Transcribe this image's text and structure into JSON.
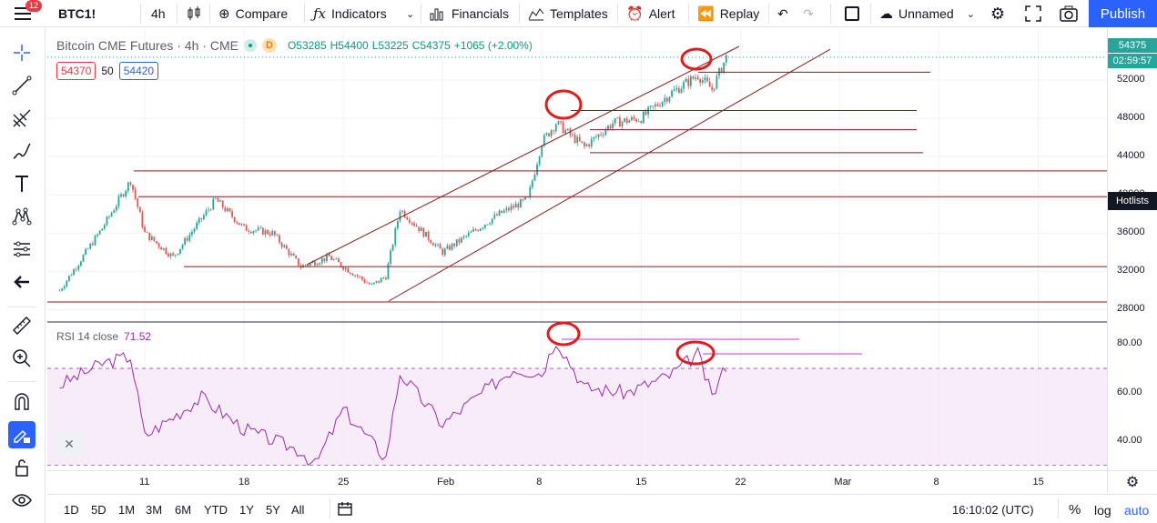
{
  "topbar": {
    "notification_count": "12",
    "symbol": "BTC1!",
    "interval": "4h",
    "compare_label": "Compare",
    "indicators_label": "Indicators",
    "financials_label": "Financials",
    "templates_label": "Templates",
    "alert_label": "Alert",
    "replay_label": "Replay",
    "layout_name": "Unnamed",
    "publish_label": "Publish"
  },
  "legend": {
    "title": "Bitcoin CME Futures · 4h · CME",
    "delay_badge": "D",
    "open": "O53285",
    "high": "H54400",
    "low": "L53225",
    "close": "C54375",
    "change": "+1065 (+2.00%)",
    "bid": "54370",
    "spread": "50",
    "ask": "54420"
  },
  "rsi": {
    "label": "RSI 14 close",
    "value": "71.52"
  },
  "price_axis": {
    "ticks": [
      "52000",
      "48000",
      "44000",
      "40000",
      "36000",
      "32000",
      "28000"
    ],
    "rsi_ticks": [
      "80.00",
      "60.00",
      "40.00"
    ],
    "last_price": "54375",
    "countdown": "02:59:57",
    "hotlists": "Hotlists"
  },
  "time_axis": {
    "ticks": [
      "11",
      "18",
      "25",
      "Feb",
      "8",
      "15",
      "22",
      "Mar",
      "8",
      "15"
    ]
  },
  "bottom": {
    "ranges": [
      "1D",
      "5D",
      "1M",
      "3M",
      "6M",
      "YTD",
      "1Y",
      "5Y",
      "All"
    ],
    "clock": "16:10:02 (UTC)",
    "percent": "%",
    "log": "log",
    "auto": "auto"
  },
  "colors": {
    "up": "#26a69a",
    "down": "#ef5350",
    "accent": "#2962ff",
    "rsi": "#9c27b0",
    "lines": "#8b1a1a",
    "circles": "#e31b1b"
  },
  "chart_data": {
    "type": "candlestick",
    "symbol": "BTC1!",
    "interval": "4h",
    "approx_close_path": [
      [
        "Jan 5",
        30000
      ],
      [
        "Jan 8",
        36500
      ],
      [
        "Jan 10",
        41500
      ],
      [
        "Jan 11",
        36000
      ],
      [
        "Jan 13",
        33500
      ],
      [
        "Jan 15",
        37500
      ],
      [
        "Jan 16",
        39500
      ],
      [
        "Jan 18",
        36500
      ],
      [
        "Jan 20",
        36000
      ],
      [
        "Jan 22",
        32500
      ],
      [
        "Jan 24",
        33500
      ],
      [
        "Jan 27",
        30500
      ],
      [
        "Jan 28",
        31500
      ],
      [
        "Jan 29",
        38500
      ],
      [
        "Feb 1",
        34000
      ],
      [
        "Feb 5",
        38000
      ],
      [
        "Feb 7",
        39500
      ],
      [
        "Feb 8",
        45500
      ],
      [
        "Feb 9",
        47500
      ],
      [
        "Feb 11",
        45000
      ],
      [
        "Feb 13",
        47500
      ],
      [
        "Feb 15",
        48000
      ],
      [
        "Feb 17",
        50500
      ],
      [
        "Feb 19",
        52500
      ],
      [
        "Feb 20",
        51000
      ],
      [
        "Feb 21",
        54375
      ]
    ],
    "yrange": [
      27000,
      55500
    ],
    "rsi_path": [
      [
        "Jan 5",
        63
      ],
      [
        "Jan 8",
        72
      ],
      [
        "Jan 10",
        75
      ],
      [
        "Jan 11",
        42
      ],
      [
        "Jan 15",
        58
      ],
      [
        "Jan 18",
        45
      ],
      [
        "Jan 22",
        36
      ],
      [
        "Jan 23",
        30
      ],
      [
        "Jan 25",
        53
      ],
      [
        "Jan 28",
        33
      ],
      [
        "Jan 29",
        68
      ],
      [
        "Feb 1",
        47
      ],
      [
        "Feb 6",
        70
      ],
      [
        "Feb 8",
        68
      ],
      [
        "Feb 9",
        82
      ],
      [
        "Feb 11",
        62
      ],
      [
        "Feb 14",
        60
      ],
      [
        "Feb 17",
        67
      ],
      [
        "Feb 19",
        76
      ],
      [
        "Feb 20",
        58
      ],
      [
        "Feb 21",
        71.52
      ]
    ],
    "rsi_range": [
      28,
      88
    ],
    "rsi_band": [
      30,
      70
    ]
  }
}
